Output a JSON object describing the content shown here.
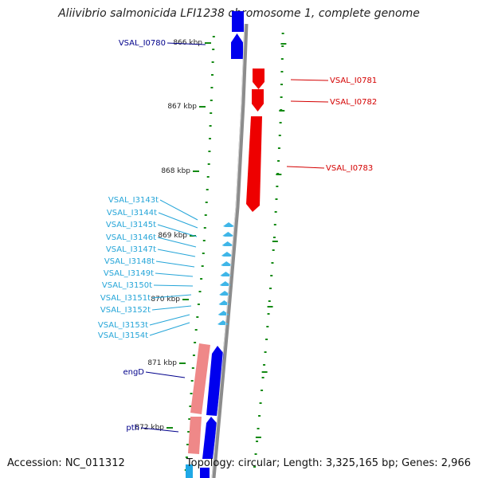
{
  "title": "Aliivibrio salmonicida LFI1238 chromosome 1, complete genome",
  "accession": "Accession: NC_011312",
  "summary": "Topology: circular; Length: 3,325,165 bp; Genes: 2,966",
  "colors": {
    "backbone": "#8c8c8c",
    "tick": "#138a13",
    "gene_forward": "#0000ee",
    "gene_reverse": "#ee0000",
    "trna": "#3fb6e8",
    "pseudo": "#ef8888",
    "label_forward": "#00008b",
    "label_reverse": "#d40000",
    "label_trna": "#25a5d8"
  },
  "ruler": [
    {
      "label": "866 kbp"
    },
    {
      "label": "867 kbp"
    },
    {
      "label": "868 kbp"
    },
    {
      "label": "869 kbp"
    },
    {
      "label": "870 kbp"
    },
    {
      "label": "871 kbp"
    },
    {
      "label": "872 kbp"
    }
  ],
  "genes": [
    {
      "label": "VSAL_I0780",
      "strand": "forward"
    },
    {
      "label": "VSAL_I0781",
      "strand": "reverse"
    },
    {
      "label": "VSAL_I0782",
      "strand": "reverse"
    },
    {
      "label": "VSAL_I0783",
      "strand": "reverse"
    },
    {
      "label": "VSAL_I3143t",
      "strand": "trna"
    },
    {
      "label": "VSAL_I3144t",
      "strand": "trna"
    },
    {
      "label": "VSAL_I3145t",
      "strand": "trna"
    },
    {
      "label": "VSAL_I3146t",
      "strand": "trna"
    },
    {
      "label": "VSAL_I3147t",
      "strand": "trna"
    },
    {
      "label": "VSAL_I3148t",
      "strand": "trna"
    },
    {
      "label": "VSAL_I3149t",
      "strand": "trna"
    },
    {
      "label": "VSAL_I3150t",
      "strand": "trna"
    },
    {
      "label": "VSAL_I3151t",
      "strand": "trna"
    },
    {
      "label": "VSAL_I3152t",
      "strand": "trna"
    },
    {
      "label": "VSAL_I3153t",
      "strand": "trna"
    },
    {
      "label": "VSAL_I3154t",
      "strand": "trna"
    },
    {
      "label": "engD",
      "strand": "forward"
    },
    {
      "label": "pth",
      "strand": "forward"
    }
  ]
}
